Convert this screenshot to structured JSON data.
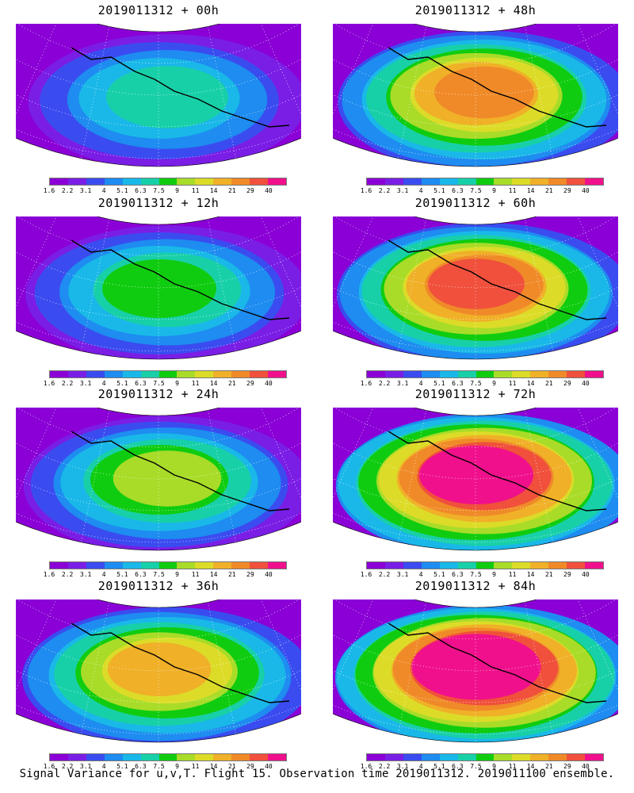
{
  "panels": [
    {
      "title": "2019011312 + 00h",
      "level": 0
    },
    {
      "title": "2019011312 + 48h",
      "level": 4
    },
    {
      "title": "2019011312 + 12h",
      "level": 1
    },
    {
      "title": "2019011312 + 60h",
      "level": 5
    },
    {
      "title": "2019011312 + 24h",
      "level": 2
    },
    {
      "title": "2019011312 + 72h",
      "level": 6
    },
    {
      "title": "2019011312 + 36h",
      "level": 3
    },
    {
      "title": "2019011312 + 84h",
      "level": 7
    }
  ],
  "colorbar": {
    "labels": [
      "1.6",
      "2.2",
      "3.1",
      "4",
      "5.1",
      "6.3",
      "7.5",
      "9",
      "11",
      "14",
      "21",
      "29",
      "40"
    ],
    "colors": [
      "#8a00d6",
      "#7a1ee6",
      "#3a4cf0",
      "#1e8cf0",
      "#19b8e8",
      "#18d0a8",
      "#10cc10",
      "#a8dc28",
      "#dcdc28",
      "#f0b028",
      "#f08a28",
      "#f0503c",
      "#f0108c"
    ]
  },
  "footer": "Signal Variance for u,v,T. Flight 15. Observation time 2019011312. 2019011100 ensemble."
}
